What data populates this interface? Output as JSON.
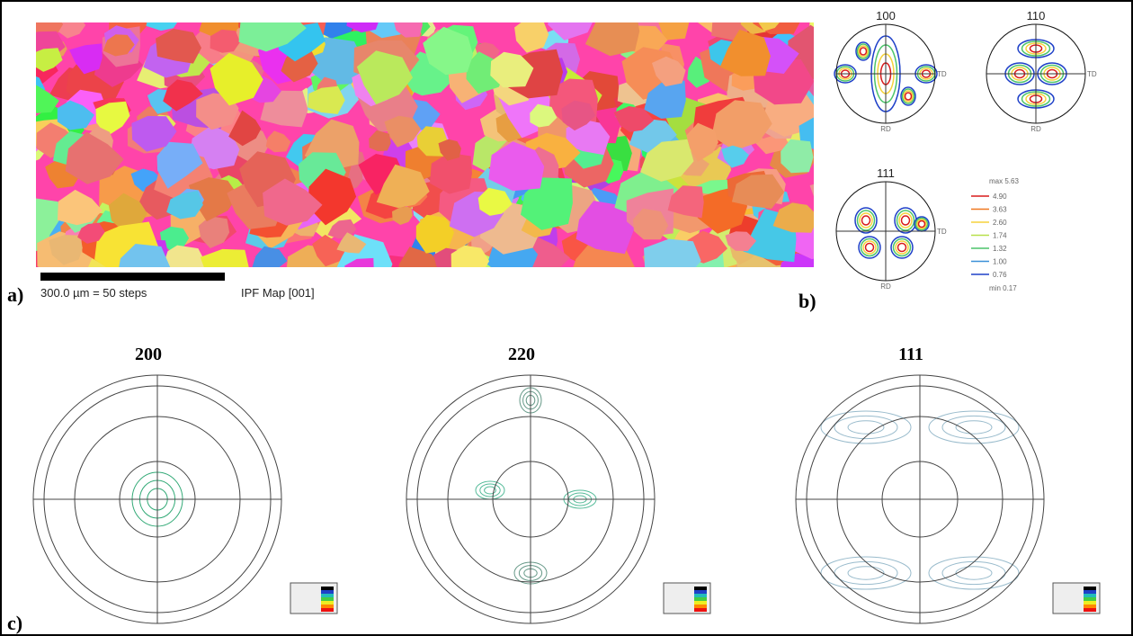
{
  "panel_a": {
    "label": "a)",
    "scale_bar": "300.0 µm = 50 steps",
    "map_title": "IPF Map [001]"
  },
  "panel_b": {
    "label": "b)",
    "pole_figures": [
      {
        "title": "100",
        "td": "TD",
        "rd": "RD"
      },
      {
        "title": "110",
        "td": "TD",
        "rd": "RD"
      },
      {
        "title": "111",
        "td": "TD",
        "rd": "RD"
      }
    ],
    "legend": {
      "max": "max 5.63",
      "levels": [
        "4.90",
        "3.63",
        "2.60",
        "1.74",
        "1.32",
        "1.00",
        "0.76"
      ],
      "min": "min 0.17"
    }
  },
  "panel_c": {
    "label": "c)",
    "pole_figures": [
      "200",
      "220",
      "111"
    ]
  }
}
